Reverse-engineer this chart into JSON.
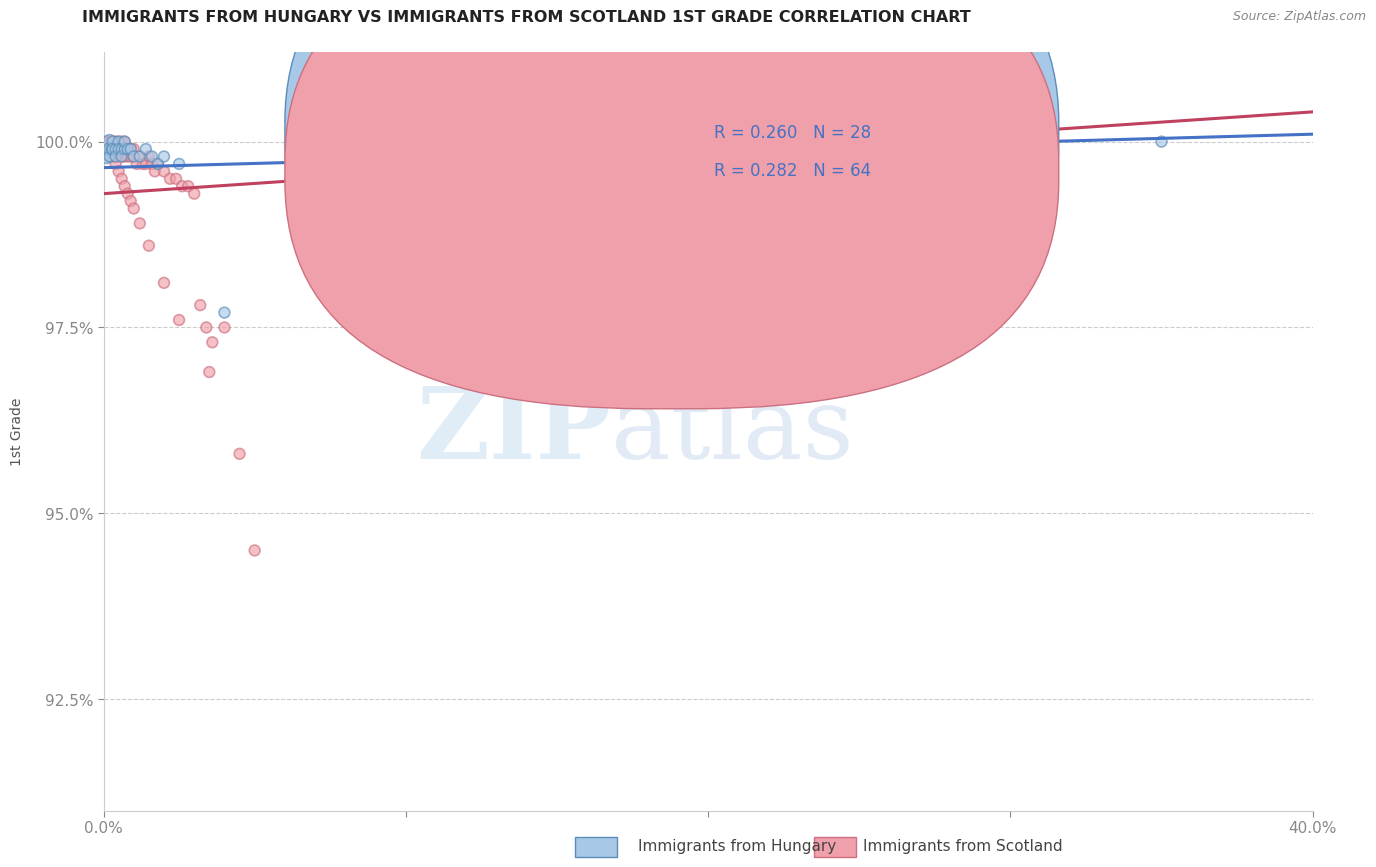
{
  "title": "IMMIGRANTS FROM HUNGARY VS IMMIGRANTS FROM SCOTLAND 1ST GRADE CORRELATION CHART",
  "source_text": "Source: ZipAtlas.com",
  "ylabel": "1st Grade",
  "xlim": [
    0.0,
    0.4
  ],
  "ylim": [
    0.91,
    1.012
  ],
  "xticks": [
    0.0,
    0.1,
    0.2,
    0.3,
    0.4
  ],
  "xticklabels": [
    "0.0%",
    "",
    "",
    "",
    "40.0%"
  ],
  "yticks": [
    0.925,
    0.95,
    0.975,
    1.0
  ],
  "yticklabels": [
    "92.5%",
    "95.0%",
    "97.5%",
    "100.0%"
  ],
  "hungary_R": 0.26,
  "hungary_N": 28,
  "scotland_R": 0.282,
  "scotland_N": 64,
  "hungary_color": "#a8c8e8",
  "scotland_color": "#f0a0aa",
  "hungary_edge": "#5b8db8",
  "scotland_edge": "#cc7080",
  "trendline_hungary_color": "#4472c4",
  "trendline_scotland_color": "#c04060",
  "watermark_zip": "ZIP",
  "watermark_atlas": "atlas",
  "hungary_x": [
    0.001,
    0.001,
    0.002,
    0.002,
    0.002,
    0.003,
    0.003,
    0.003,
    0.004,
    0.004,
    0.005,
    0.005,
    0.006,
    0.006,
    0.007,
    0.007,
    0.008,
    0.009,
    0.01,
    0.012,
    0.014,
    0.016,
    0.018,
    0.02,
    0.025,
    0.04,
    0.18,
    0.35
  ],
  "hungary_y": [
    0.999,
    0.998,
    1.0,
    0.999,
    0.998,
    0.999,
    1.0,
    0.999,
    0.999,
    0.998,
    1.0,
    0.999,
    0.999,
    0.998,
    0.999,
    1.0,
    0.999,
    0.999,
    0.998,
    0.998,
    0.999,
    0.998,
    0.997,
    0.998,
    0.997,
    0.977,
    0.975,
    1.0
  ],
  "hungary_size": [
    150,
    100,
    100,
    80,
    60,
    80,
    60,
    60,
    60,
    60,
    60,
    60,
    60,
    60,
    60,
    60,
    60,
    60,
    60,
    60,
    60,
    60,
    60,
    60,
    60,
    60,
    60,
    60
  ],
  "scotland_x": [
    0.001,
    0.001,
    0.001,
    0.002,
    0.002,
    0.002,
    0.002,
    0.003,
    0.003,
    0.003,
    0.003,
    0.004,
    0.004,
    0.004,
    0.004,
    0.005,
    0.005,
    0.005,
    0.006,
    0.006,
    0.006,
    0.007,
    0.007,
    0.007,
    0.008,
    0.008,
    0.009,
    0.009,
    0.01,
    0.01,
    0.011,
    0.012,
    0.013,
    0.014,
    0.015,
    0.016,
    0.017,
    0.018,
    0.02,
    0.022,
    0.024,
    0.026,
    0.028,
    0.03,
    0.032,
    0.034,
    0.036,
    0.04,
    0.045,
    0.05,
    0.002,
    0.003,
    0.004,
    0.005,
    0.006,
    0.007,
    0.008,
    0.009,
    0.01,
    0.012,
    0.015,
    0.02,
    0.025,
    0.035
  ],
  "scotland_y": [
    1.0,
    0.999,
    0.999,
    1.0,
    0.999,
    0.999,
    0.998,
    1.0,
    0.999,
    0.999,
    0.998,
    1.0,
    0.999,
    0.999,
    0.998,
    1.0,
    0.999,
    0.998,
    1.0,
    0.999,
    0.998,
    1.0,
    0.999,
    0.998,
    0.999,
    0.998,
    0.999,
    0.998,
    0.999,
    0.998,
    0.997,
    0.998,
    0.997,
    0.997,
    0.998,
    0.997,
    0.996,
    0.997,
    0.996,
    0.995,
    0.995,
    0.994,
    0.994,
    0.993,
    0.978,
    0.975,
    0.973,
    0.975,
    0.958,
    0.945,
    0.999,
    0.998,
    0.997,
    0.996,
    0.995,
    0.994,
    0.993,
    0.992,
    0.991,
    0.989,
    0.986,
    0.981,
    0.976,
    0.969
  ],
  "scotland_size": [
    60,
    60,
    60,
    60,
    60,
    60,
    60,
    60,
    60,
    60,
    60,
    60,
    60,
    60,
    60,
    60,
    60,
    60,
    60,
    60,
    60,
    60,
    60,
    60,
    60,
    60,
    60,
    60,
    60,
    60,
    60,
    60,
    60,
    60,
    60,
    60,
    60,
    60,
    60,
    60,
    60,
    60,
    60,
    60,
    60,
    60,
    60,
    60,
    60,
    60,
    60,
    60,
    60,
    60,
    60,
    60,
    60,
    60,
    60,
    60,
    60,
    60,
    60,
    60
  ],
  "trend_hungary_x0": 0.0,
  "trend_hungary_y0": 0.9965,
  "trend_hungary_x1": 0.4,
  "trend_hungary_y1": 1.001,
  "trend_scotland_x0": 0.0,
  "trend_scotland_y0": 0.993,
  "trend_scotland_x1": 0.4,
  "trend_scotland_y1": 1.004
}
